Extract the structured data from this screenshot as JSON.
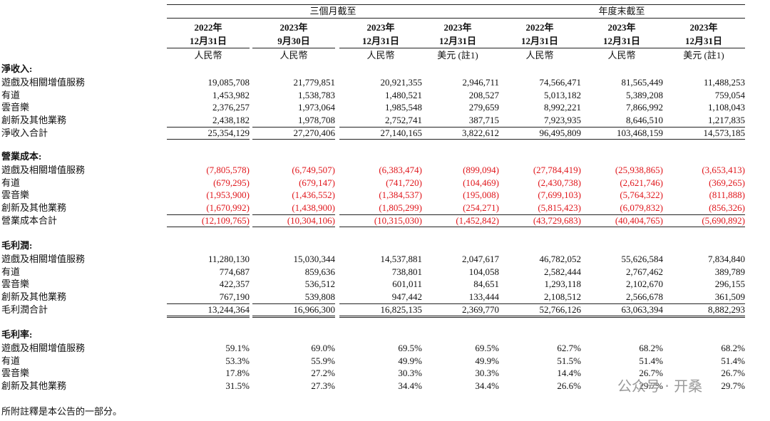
{
  "header": {
    "groups": [
      {
        "label": "三個月截至",
        "span": 4
      },
      {
        "label": "年度末截至",
        "span": 3
      }
    ],
    "columns": [
      {
        "year": "2022年",
        "date": "12月31日",
        "currency": "人民幣"
      },
      {
        "year": "2023年",
        "date": "9月30日",
        "currency": "人民幣"
      },
      {
        "year": "2023年",
        "date": "12月31日",
        "currency": "人民幣"
      },
      {
        "year": "2023年",
        "date": "12月31日",
        "currency": "美元 (註1)"
      },
      {
        "year": "2022年",
        "date": "12月31日",
        "currency": "人民幣"
      },
      {
        "year": "2023年",
        "date": "12月31日",
        "currency": "人民幣"
      },
      {
        "year": "2023年",
        "date": "12月31日",
        "currency": "美元 (註1)"
      }
    ]
  },
  "sections": [
    {
      "title": "淨收入:",
      "rows": [
        {
          "label": "遊戲及相關增值服務",
          "values": [
            "19,085,708",
            "21,779,851",
            "20,921,355",
            "2,946,711",
            "74,566,471",
            "81,565,449",
            "11,488,253"
          ]
        },
        {
          "label": "有道",
          "values": [
            "1,453,982",
            "1,538,783",
            "1,480,521",
            "208,527",
            "5,013,182",
            "5,389,208",
            "759,054"
          ]
        },
        {
          "label": "雲音樂",
          "values": [
            "2,376,257",
            "1,973,064",
            "1,985,548",
            "279,659",
            "8,992,221",
            "7,866,992",
            "1,108,043"
          ]
        },
        {
          "label": "創新及其他業務",
          "values": [
            "2,438,182",
            "1,978,708",
            "2,752,741",
            "387,715",
            "7,923,935",
            "8,646,510",
            "1,217,835"
          ]
        }
      ],
      "total": {
        "label": "淨收入合計",
        "values": [
          "25,354,129",
          "27,270,406",
          "27,140,165",
          "3,822,612",
          "96,495,809",
          "103,468,159",
          "14,573,185"
        ]
      }
    },
    {
      "title": "營業成本:",
      "rows": [
        {
          "label": "遊戲及相關增值服務",
          "values": [
            "(7,805,578)",
            "(6,749,507)",
            "(6,383,474)",
            "(899,094)",
            "(27,784,419)",
            "(25,938,865)",
            "(3,653,413)"
          ]
        },
        {
          "label": "有道",
          "values": [
            "(679,295)",
            "(679,147)",
            "(741,720)",
            "(104,469)",
            "(2,430,738)",
            "(2,621,746)",
            "(369,265)"
          ]
        },
        {
          "label": "雲音樂",
          "values": [
            "(1,953,900)",
            "(1,436,552)",
            "(1,384,537)",
            "(195,008)",
            "(7,699,103)",
            "(5,764,322)",
            "(811,888)"
          ]
        },
        {
          "label": "創新及其他業務",
          "values": [
            "(1,670,992)",
            "(1,438,900)",
            "(1,805,299)",
            "(254,271)",
            "(5,815,423)",
            "(6,079,832)",
            "(856,326)"
          ]
        }
      ],
      "total": {
        "label": "營業成本合計",
        "values": [
          "(12,109,765)",
          "(10,304,106)",
          "(10,315,030)",
          "(1,452,842)",
          "(43,729,683)",
          "(40,404,765)",
          "(5,690,892)"
        ]
      }
    },
    {
      "title": "毛利潤:",
      "rows": [
        {
          "label": "遊戲及相關增值服務",
          "values": [
            "11,280,130",
            "15,030,344",
            "14,537,881",
            "2,047,617",
            "46,782,052",
            "55,626,584",
            "7,834,840"
          ]
        },
        {
          "label": "有道",
          "values": [
            "774,687",
            "859,636",
            "738,801",
            "104,058",
            "2,582,444",
            "2,767,462",
            "389,789"
          ]
        },
        {
          "label": "雲音樂",
          "values": [
            "422,357",
            "536,512",
            "601,011",
            "84,651",
            "1,293,118",
            "2,102,670",
            "296,155"
          ]
        },
        {
          "label": "創新及其他業務",
          "values": [
            "767,190",
            "539,808",
            "947,442",
            "133,444",
            "2,108,512",
            "2,566,678",
            "361,509"
          ]
        }
      ],
      "total": {
        "label": "毛利潤合計",
        "values": [
          "13,244,364",
          "16,966,300",
          "16,825,135",
          "2,369,770",
          "52,766,126",
          "63,063,394",
          "8,882,293"
        ]
      }
    },
    {
      "title": "毛利率:",
      "rows": [
        {
          "label": "遊戲及相關增值服務",
          "values": [
            "59.1%",
            "69.0%",
            "69.5%",
            "69.5%",
            "62.7%",
            "68.2%",
            "68.2%"
          ]
        },
        {
          "label": "有道",
          "values": [
            "53.3%",
            "55.9%",
            "49.9%",
            "49.9%",
            "51.5%",
            "51.4%",
            "51.4%"
          ]
        },
        {
          "label": "雲音樂",
          "values": [
            "17.8%",
            "27.2%",
            "30.3%",
            "30.3%",
            "14.4%",
            "26.7%",
            "26.7%"
          ]
        },
        {
          "label": "創新及其他業務",
          "values": [
            "31.5%",
            "27.3%",
            "34.4%",
            "34.4%",
            "26.6%",
            "29.7%",
            "29.7%"
          ]
        }
      ]
    }
  ],
  "footnote": "所附註釋是本公告的一部分。",
  "watermark": "公众号 · 开桑"
}
